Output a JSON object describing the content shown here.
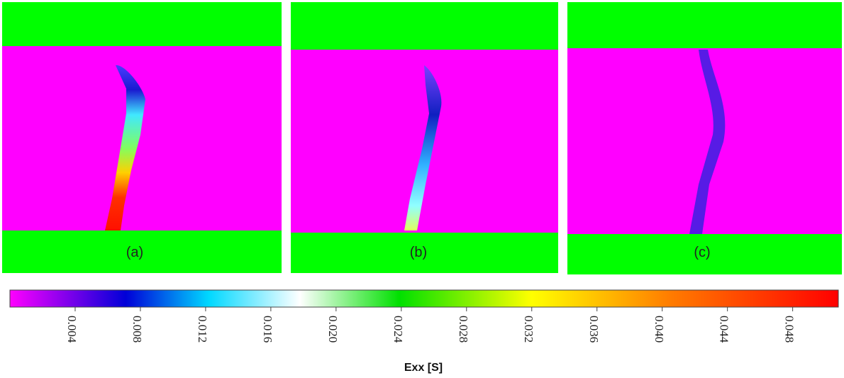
{
  "panels": [
    {
      "label": "(a)"
    },
    {
      "label": "(b)"
    },
    {
      "label": "(c)"
    }
  ],
  "colorbar": {
    "label": "Exx [S]",
    "lim": [
      0,
      0.0508
    ],
    "ticks": [
      0.004,
      0.008,
      0.012,
      0.016,
      {
        "value": 0.02,
        "label": "0.020"
      },
      0.024,
      0.028,
      0.032,
      0.036,
      {
        "value": 0.04,
        "label": "0.040"
      },
      0.044,
      0.048
    ]
  }
}
